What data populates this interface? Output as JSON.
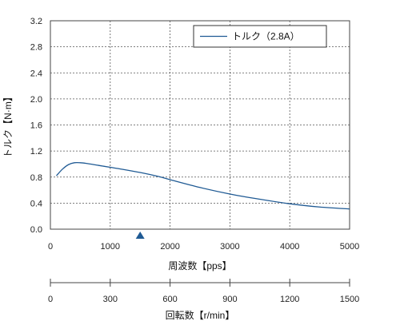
{
  "chart_data": {
    "type": "line",
    "title": "",
    "xlabel": "周波数【pps】",
    "ylabel": "トルク【N·m】",
    "xlim": [
      0,
      5000
    ],
    "ylim": [
      0,
      3.2
    ],
    "xticks": [
      0,
      1000,
      2000,
      3000,
      4000,
      5000
    ],
    "yticks": [
      0.0,
      0.4,
      0.8,
      1.2,
      1.6,
      2.0,
      2.4,
      2.8,
      3.2
    ],
    "ytick_labels": [
      "0.0",
      "0.4",
      "0.8",
      "1.2",
      "1.6",
      "2.0",
      "2.4",
      "2.8",
      "3.2"
    ],
    "grid": true,
    "legend_position": "top-right",
    "series": [
      {
        "name": "トルク（2.8A）",
        "color": "#1f5a94",
        "x": [
          100,
          200,
          300,
          400,
          500,
          600,
          800,
          1000,
          1200,
          1500,
          1800,
          2000,
          2500,
          3000,
          3500,
          4000,
          4500,
          5000
        ],
        "y": [
          0.82,
          0.92,
          0.99,
          1.02,
          1.02,
          1.01,
          0.98,
          0.95,
          0.92,
          0.87,
          0.81,
          0.76,
          0.64,
          0.54,
          0.46,
          0.39,
          0.34,
          0.31
        ]
      }
    ],
    "marker": {
      "x": 1500,
      "shape": "triangle-up",
      "color": "#1f5a94"
    },
    "secondary_axis": {
      "label": "回転数【r/min】",
      "range": [
        0,
        1500
      ],
      "ticks": [
        0,
        300,
        600,
        900,
        1200,
        1500
      ]
    }
  }
}
